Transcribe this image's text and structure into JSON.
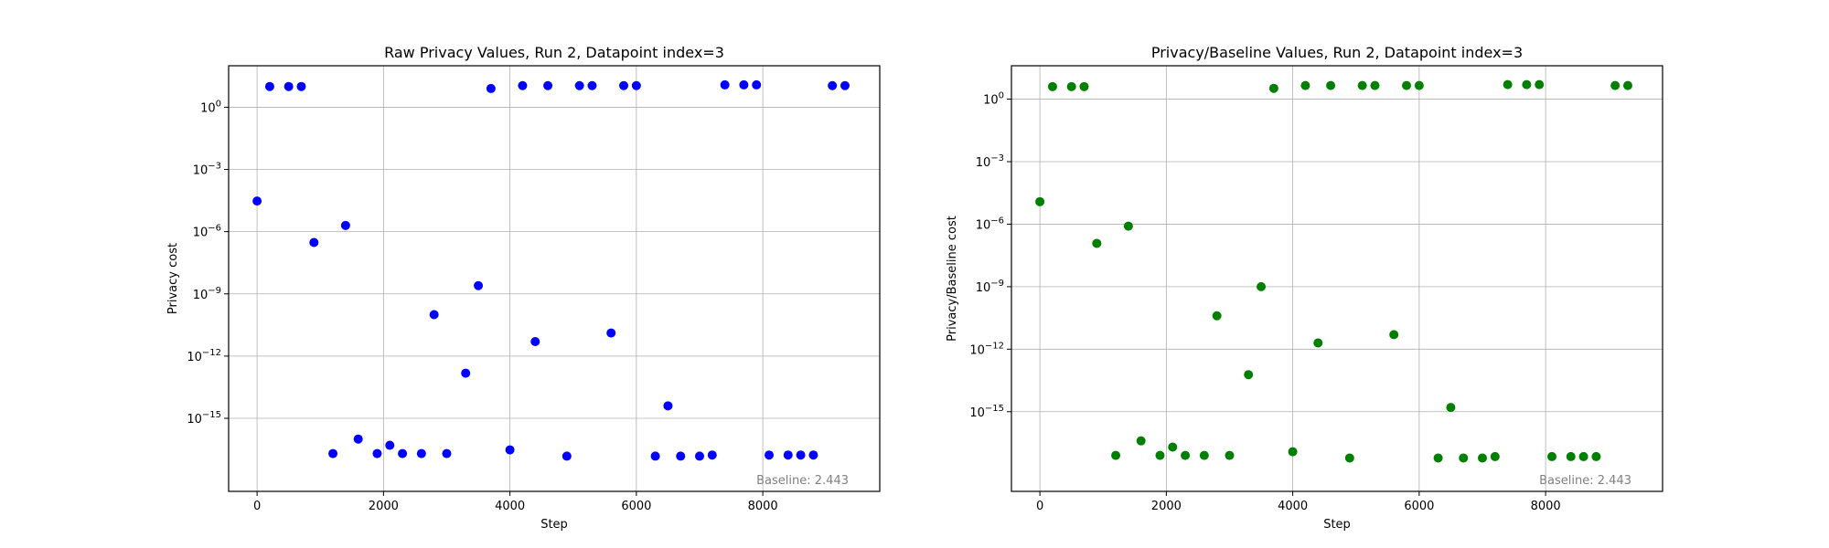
{
  "chart_data": [
    {
      "type": "scatter",
      "title": "Raw Privacy Values, Run 2, Datapoint index=3",
      "xlabel": "Step",
      "ylabel": "Privacy cost",
      "yscale": "log",
      "xlim": [
        -450,
        9850
      ],
      "ylim": [
        3e-19,
        100.0
      ],
      "xticks": [
        0,
        2000,
        4000,
        6000,
        8000
      ],
      "xtick_labels": [
        "0",
        "2000",
        "4000",
        "6000",
        "8000"
      ],
      "yticks": [
        1.0,
        0.001,
        1e-06,
        1e-09,
        1e-12,
        1e-15
      ],
      "ytick_labels": [
        {
          "base": "10",
          "exp": "0"
        },
        {
          "base": "10",
          "exp": "−3"
        },
        {
          "base": "10",
          "exp": "−6"
        },
        {
          "base": "10",
          "exp": "−9"
        },
        {
          "base": "10",
          "exp": "−12"
        },
        {
          "base": "10",
          "exp": "−15"
        }
      ],
      "grid": true,
      "color": "#0000ff",
      "annotation": "Baseline: 2.443",
      "points": [
        {
          "x": 0,
          "y": 3e-05
        },
        {
          "x": 200,
          "y": 10
        },
        {
          "x": 500,
          "y": 10
        },
        {
          "x": 700,
          "y": 10
        },
        {
          "x": 900,
          "y": 3e-07
        },
        {
          "x": 1200,
          "y": 2e-17
        },
        {
          "x": 1400,
          "y": 2e-06
        },
        {
          "x": 1600,
          "y": 1e-16
        },
        {
          "x": 1900,
          "y": 2e-17
        },
        {
          "x": 2100,
          "y": 5e-17
        },
        {
          "x": 2300,
          "y": 2e-17
        },
        {
          "x": 2600,
          "y": 2e-17
        },
        {
          "x": 2800,
          "y": 1e-10
        },
        {
          "x": 3000,
          "y": 2e-17
        },
        {
          "x": 3300,
          "y": 1.5e-13
        },
        {
          "x": 3500,
          "y": 2.5e-09
        },
        {
          "x": 3700,
          "y": 8
        },
        {
          "x": 4000,
          "y": 3e-17
        },
        {
          "x": 4200,
          "y": 11
        },
        {
          "x": 4400,
          "y": 5e-12
        },
        {
          "x": 4600,
          "y": 11
        },
        {
          "x": 4900,
          "y": 1.5e-17
        },
        {
          "x": 5100,
          "y": 11
        },
        {
          "x": 5300,
          "y": 11
        },
        {
          "x": 5600,
          "y": 1.3e-11
        },
        {
          "x": 5800,
          "y": 11
        },
        {
          "x": 6000,
          "y": 11
        },
        {
          "x": 6300,
          "y": 1.5e-17
        },
        {
          "x": 6500,
          "y": 4e-15
        },
        {
          "x": 6700,
          "y": 1.5e-17
        },
        {
          "x": 7000,
          "y": 1.5e-17
        },
        {
          "x": 7200,
          "y": 1.7e-17
        },
        {
          "x": 7400,
          "y": 12
        },
        {
          "x": 7700,
          "y": 12
        },
        {
          "x": 7900,
          "y": 12
        },
        {
          "x": 8100,
          "y": 1.7e-17
        },
        {
          "x": 8400,
          "y": 1.7e-17
        },
        {
          "x": 8600,
          "y": 1.7e-17
        },
        {
          "x": 8800,
          "y": 1.7e-17
        },
        {
          "x": 9100,
          "y": 11
        },
        {
          "x": 9300,
          "y": 11
        }
      ]
    },
    {
      "type": "scatter",
      "title": "Privacy/Baseline Values, Run 2, Datapoint index=3",
      "xlabel": "Step",
      "ylabel": "Privacy/Baseline cost",
      "yscale": "log",
      "xlim": [
        -450,
        9850
      ],
      "ylim": [
        1.5e-19,
        40.0
      ],
      "xticks": [
        0,
        2000,
        4000,
        6000,
        8000
      ],
      "xtick_labels": [
        "0",
        "2000",
        "4000",
        "6000",
        "8000"
      ],
      "yticks": [
        1.0,
        0.001,
        1e-06,
        1e-09,
        1e-12,
        1e-15
      ],
      "ytick_labels": [
        {
          "base": "10",
          "exp": "0"
        },
        {
          "base": "10",
          "exp": "−3"
        },
        {
          "base": "10",
          "exp": "−6"
        },
        {
          "base": "10",
          "exp": "−9"
        },
        {
          "base": "10",
          "exp": "−12"
        },
        {
          "base": "10",
          "exp": "−15"
        }
      ],
      "grid": true,
      "color": "#008000",
      "annotation": "Baseline: 2.443",
      "points": [
        {
          "x": 0,
          "y": 1.2e-05
        },
        {
          "x": 200,
          "y": 4
        },
        {
          "x": 500,
          "y": 4
        },
        {
          "x": 700,
          "y": 4
        },
        {
          "x": 900,
          "y": 1.2e-07
        },
        {
          "x": 1200,
          "y": 8e-18
        },
        {
          "x": 1400,
          "y": 8e-07
        },
        {
          "x": 1600,
          "y": 4e-17
        },
        {
          "x": 1900,
          "y": 8e-18
        },
        {
          "x": 2100,
          "y": 2e-17
        },
        {
          "x": 2300,
          "y": 8e-18
        },
        {
          "x": 2600,
          "y": 8e-18
        },
        {
          "x": 2800,
          "y": 4e-11
        },
        {
          "x": 3000,
          "y": 8e-18
        },
        {
          "x": 3300,
          "y": 6e-14
        },
        {
          "x": 3500,
          "y": 1e-09
        },
        {
          "x": 3700,
          "y": 3.3
        },
        {
          "x": 4000,
          "y": 1.2e-17
        },
        {
          "x": 4200,
          "y": 4.5
        },
        {
          "x": 4400,
          "y": 2e-12
        },
        {
          "x": 4600,
          "y": 4.5
        },
        {
          "x": 4900,
          "y": 6e-18
        },
        {
          "x": 5100,
          "y": 4.5
        },
        {
          "x": 5300,
          "y": 4.5
        },
        {
          "x": 5600,
          "y": 5e-12
        },
        {
          "x": 5800,
          "y": 4.5
        },
        {
          "x": 6000,
          "y": 4.5
        },
        {
          "x": 6300,
          "y": 6e-18
        },
        {
          "x": 6500,
          "y": 1.6e-15
        },
        {
          "x": 6700,
          "y": 6e-18
        },
        {
          "x": 7000,
          "y": 6e-18
        },
        {
          "x": 7200,
          "y": 7e-18
        },
        {
          "x": 7400,
          "y": 5
        },
        {
          "x": 7700,
          "y": 5
        },
        {
          "x": 7900,
          "y": 5
        },
        {
          "x": 8100,
          "y": 7e-18
        },
        {
          "x": 8400,
          "y": 7e-18
        },
        {
          "x": 8600,
          "y": 7e-18
        },
        {
          "x": 8800,
          "y": 7e-18
        },
        {
          "x": 9100,
          "y": 4.5
        },
        {
          "x": 9300,
          "y": 4.5
        }
      ]
    }
  ]
}
